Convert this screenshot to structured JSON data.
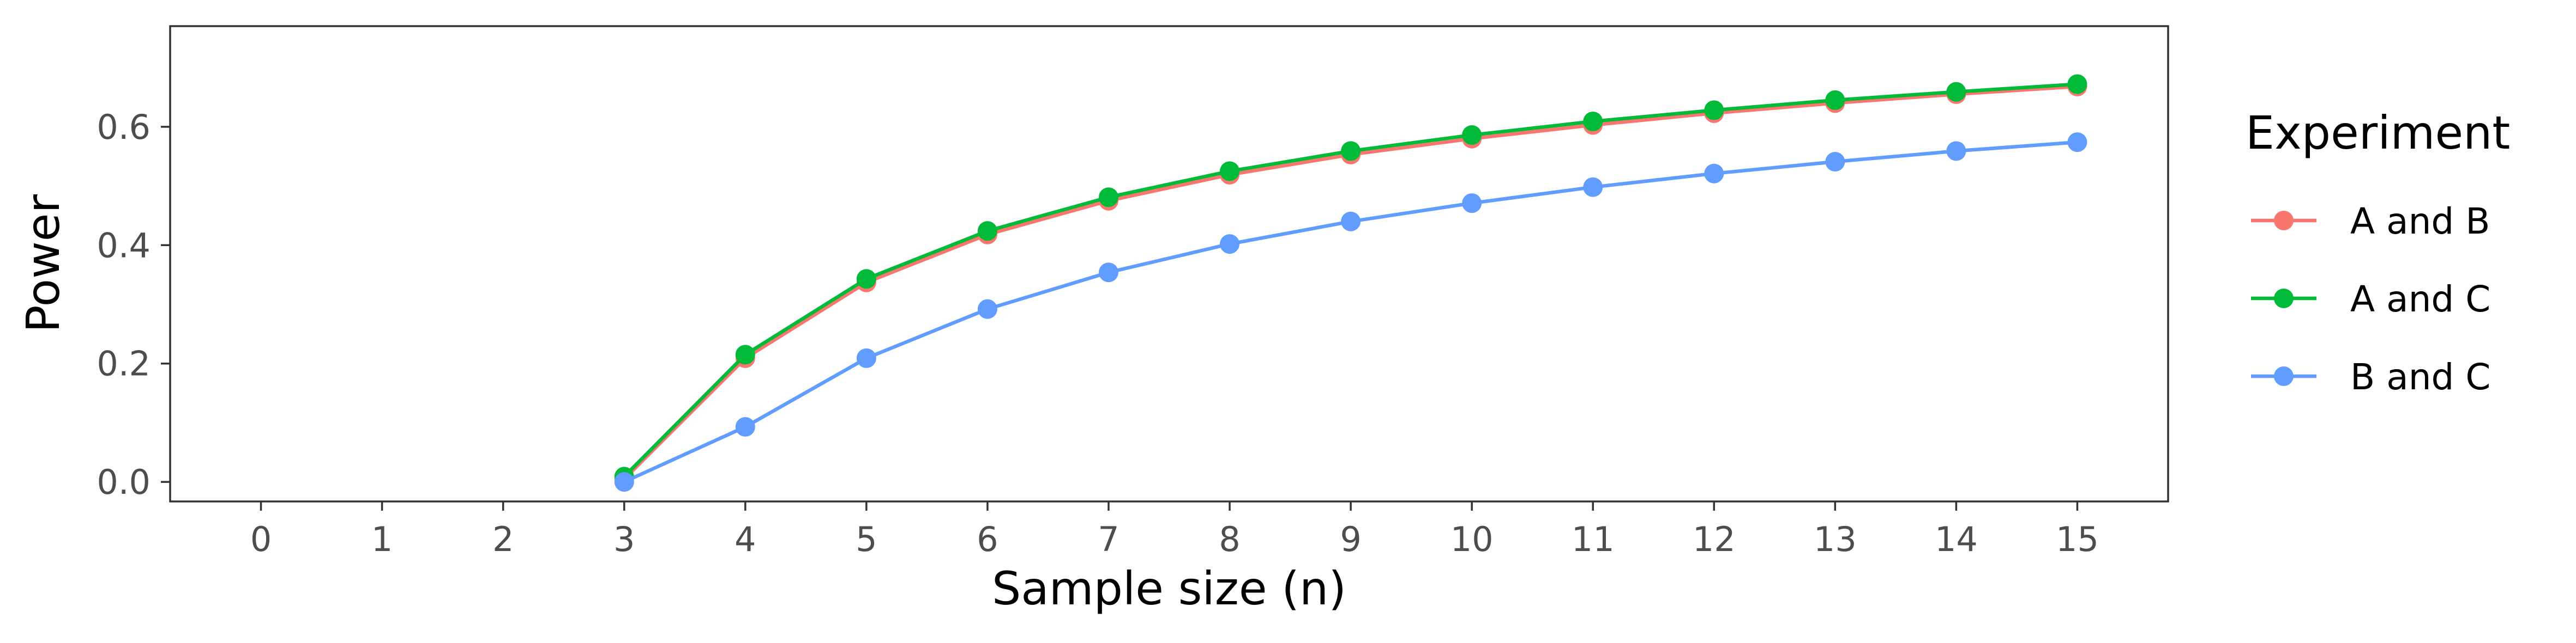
{
  "chart_data": {
    "type": "line",
    "xlabel": "Sample size (n)",
    "ylabel": "Power",
    "xlim": [
      -0.75,
      15.75
    ],
    "ylim": [
      -0.033,
      0.77
    ],
    "x_ticks": [
      "0",
      "1",
      "2",
      "3",
      "4",
      "5",
      "6",
      "7",
      "8",
      "9",
      "10",
      "11",
      "12",
      "13",
      "14",
      "15"
    ],
    "y_ticks": [
      "0.0",
      "0.2",
      "0.4",
      "0.6"
    ],
    "y_tick_values": [
      0.0,
      0.2,
      0.4,
      0.6
    ],
    "grid": false,
    "legend_position": "right",
    "legend_title": "Experiment",
    "x": [
      3,
      4,
      5,
      6,
      7,
      8,
      9,
      10,
      11,
      12,
      13,
      14,
      15
    ],
    "series": [
      {
        "name": "A and B",
        "color": "#F8766D",
        "values": [
          0.005,
          0.209,
          0.337,
          0.418,
          0.475,
          0.519,
          0.553,
          0.58,
          0.603,
          0.623,
          0.64,
          0.655,
          0.668
        ]
      },
      {
        "name": "A and C",
        "color": "#00BA38",
        "values": [
          0.009,
          0.215,
          0.343,
          0.424,
          0.481,
          0.525,
          0.559,
          0.586,
          0.609,
          0.628,
          0.645,
          0.659,
          0.672
        ]
      },
      {
        "name": "B and C",
        "color": "#619CFF",
        "values": [
          0.0,
          0.093,
          0.209,
          0.292,
          0.354,
          0.402,
          0.44,
          0.471,
          0.498,
          0.521,
          0.541,
          0.559,
          0.574
        ]
      }
    ]
  }
}
